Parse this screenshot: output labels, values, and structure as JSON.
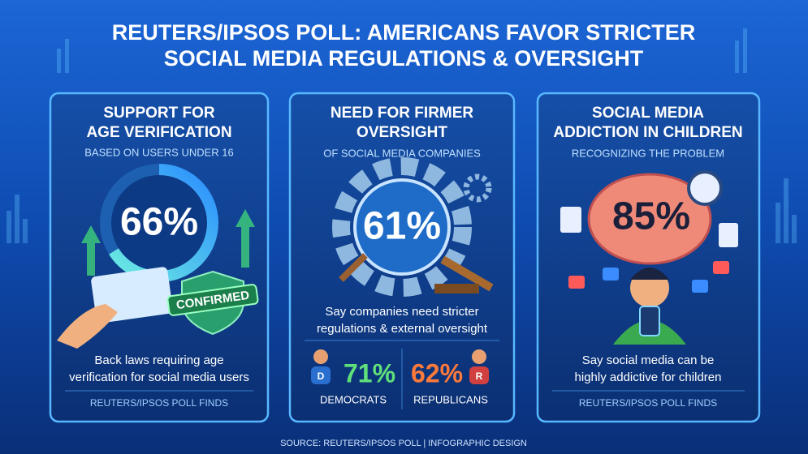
{
  "header": {
    "title_lines": [
      "REUTERS/IPSOS POLL: AMERICANS FAVOR STRICTER",
      "SOCIAL MEDIA REGULATIONS & OVERSIGHT"
    ]
  },
  "panels": [
    {
      "title_lines": [
        "SUPPORT FOR",
        "AGE VERIFICATION"
      ],
      "subtitle": "BASED ON USERS UNDER 16",
      "stat": "66%",
      "badge": "CONFIRMED",
      "description_lines": [
        "Back laws requiring age",
        "verification for social media users"
      ],
      "footer": "REUTERS/IPSOS POLL FINDS"
    },
    {
      "title_lines": [
        "NEED FOR FIRMER",
        "OVERSIGHT"
      ],
      "subtitle": "OF SOCIAL MEDIA COMPANIES",
      "stat": "61%",
      "description_lines": [
        "Say companies need stricter",
        "regulations & external oversight"
      ],
      "breakdown": [
        {
          "badge": "D",
          "stat": "71%",
          "label": "DEMOCRATS"
        },
        {
          "badge": "R",
          "stat": "62%",
          "label": "REPUBLICANS"
        }
      ]
    },
    {
      "title_lines": [
        "SOCIAL MEDIA",
        "ADDICTION IN CHILDREN"
      ],
      "subtitle": "RECOGNIZING THE PROBLEM",
      "stat": "85%",
      "description_lines": [
        "Say social media can be",
        "highly addictive for children"
      ],
      "footer": "REUTERS/IPSOS POLL FINDS"
    }
  ],
  "source": "SOURCE: REUTERS/IPSOS POLL | INFOGRAPHIC DESIGN"
}
